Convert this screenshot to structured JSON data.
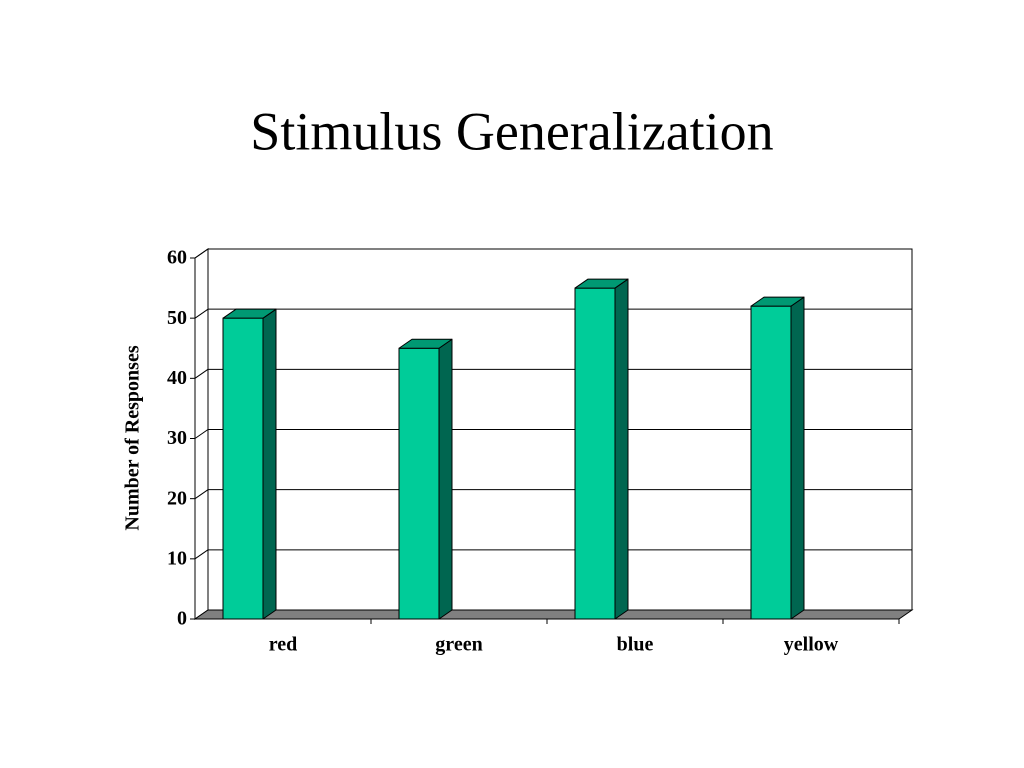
{
  "chart_data": {
    "type": "bar3d",
    "title": "Stimulus Generalization",
    "y_label": "Number of Responses",
    "categories": [
      "red",
      "green",
      "blue",
      "yellow"
    ],
    "values": [
      50,
      45,
      55,
      52
    ],
    "color": "#00cc99",
    "ylim": [
      0,
      60
    ],
    "yticks": [
      0,
      10,
      20,
      30,
      40,
      50,
      60
    ],
    "grid": true
  }
}
